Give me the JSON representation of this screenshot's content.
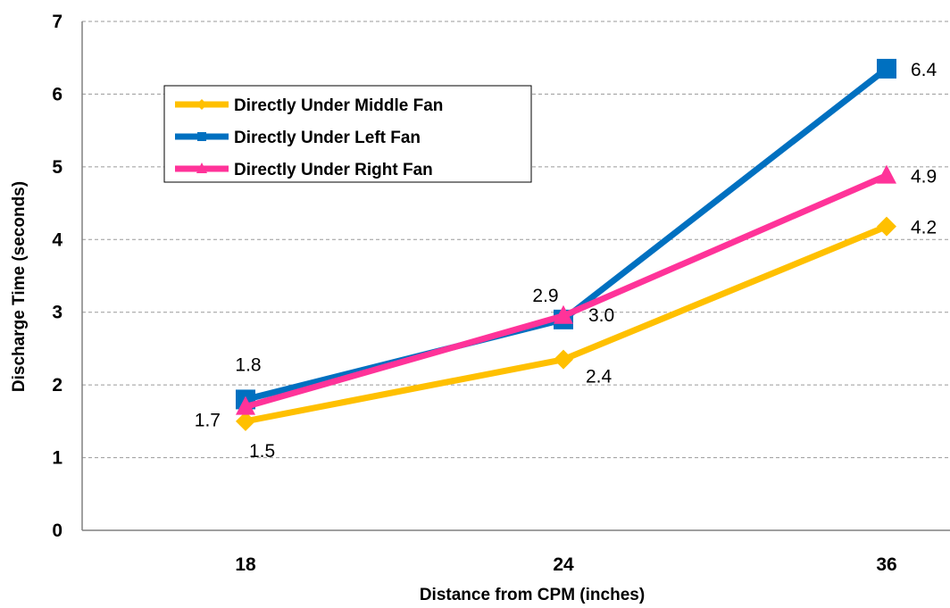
{
  "chart_data": {
    "type": "line",
    "xlabel": "Distance from CPM (inches)",
    "ylabel": "Discharge Time (seconds)",
    "categories": [
      "18",
      "24",
      "36"
    ],
    "ylim": [
      0,
      7
    ],
    "yticks": [
      "0",
      "1",
      "2",
      "3",
      "4",
      "5",
      "6",
      "7"
    ],
    "grid": "horizontal dashed",
    "legend": "top-left",
    "series": [
      {
        "name": "Directly Under Middle Fan",
        "values": [
          1.5,
          2.35,
          4.18
        ],
        "labels": [
          "1.5",
          "2.4",
          "4.2"
        ],
        "color": "#FFC000",
        "marker": "diamond"
      },
      {
        "name": "Directly Under Left Fan",
        "values": [
          1.8,
          2.9,
          6.35
        ],
        "labels": [
          "1.8",
          "2.9",
          "6.4"
        ],
        "color": "#0070C0",
        "marker": "square"
      },
      {
        "name": "Directly Under Right Fan",
        "values": [
          1.7,
          2.95,
          4.88
        ],
        "labels": [
          "1.7",
          "3.0",
          "4.9"
        ],
        "color": "#FF3399",
        "marker": "triangle"
      }
    ]
  }
}
